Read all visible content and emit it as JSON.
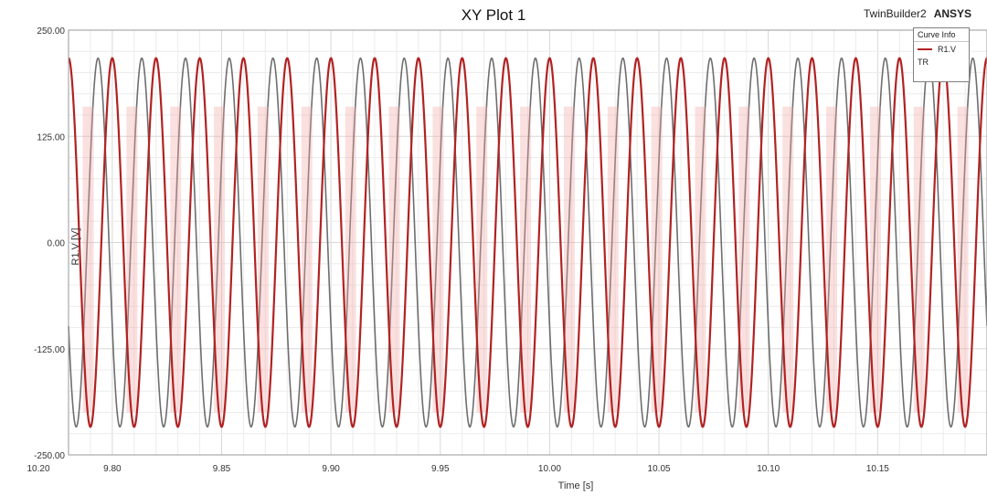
{
  "chart_data": {
    "type": "line",
    "title": "XY Plot 1",
    "xlabel": "Time [s]",
    "ylabel": "R1.V [V]",
    "xlim": [
      9.78,
      10.2
    ],
    "ylim": [
      -250,
      250
    ],
    "x_ticks": [
      "9.80",
      "9.85",
      "9.90",
      "9.95",
      "10.00",
      "10.05",
      "10.10",
      "10.15",
      "10.20"
    ],
    "y_ticks": [
      "250.00",
      "125.00",
      "0.00",
      "-125.00",
      "-250.00"
    ],
    "grid": true,
    "legend": "top-right",
    "series": [
      {
        "name": "R1.V",
        "color": "#b22222",
        "style": "sinusoid",
        "amplitude": 217,
        "period": 0.02,
        "peak_times": [
          9.78,
          9.8,
          9.82,
          9.84,
          9.86,
          9.88,
          9.9,
          9.92,
          9.94,
          9.96,
          9.98,
          10.0,
          10.02,
          10.04,
          10.06,
          10.08,
          10.1,
          10.12,
          10.14,
          10.16,
          10.18,
          10.2
        ]
      }
    ],
    "ghost_overlay": {
      "color": "#555555",
      "amplitude": 217,
      "period": 0.02,
      "phase_offset": 0.0135
    }
  },
  "header": {
    "brand_product": "TwinBuilder2",
    "brand_company": "ANSYS"
  },
  "legend_box": {
    "heading": "Curve Info",
    "entries": [
      {
        "label": "R1.V",
        "color": "#b22222"
      }
    ],
    "subtitle": "TR"
  }
}
